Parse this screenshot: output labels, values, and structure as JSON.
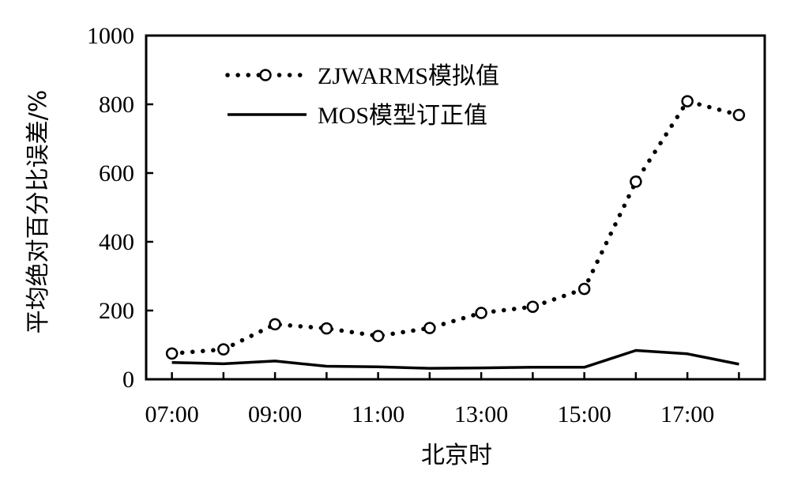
{
  "chart_data": {
    "type": "line",
    "xlabel": "北京时",
    "ylabel": "平均绝对百分比误差/%",
    "ylim": [
      0,
      1000
    ],
    "yticks": [
      "0",
      "200",
      "400",
      "600",
      "800",
      "1000"
    ],
    "xlim": [
      6.5,
      18.5
    ],
    "xticks": [
      {
        "value": 7,
        "label": "07:00"
      },
      {
        "value": 9,
        "label": "09:00"
      },
      {
        "value": 11,
        "label": "11:00"
      },
      {
        "value": 13,
        "label": "13:00"
      },
      {
        "value": 15,
        "label": "15:00"
      },
      {
        "value": 17,
        "label": "17:00"
      }
    ],
    "x": [
      7,
      8,
      9,
      10,
      11,
      12,
      13,
      14,
      15,
      16,
      17,
      18
    ],
    "series": [
      {
        "name": "ZJWARMS模拟值",
        "style": "dotted-circle",
        "values": [
          75,
          87,
          160,
          148,
          126,
          149,
          193,
          211,
          263,
          575,
          809,
          769
        ]
      },
      {
        "name": "MOS模型订正值",
        "style": "solid",
        "values": [
          49,
          45,
          53,
          38,
          36,
          32,
          33,
          35,
          35,
          84,
          74,
          44
        ]
      }
    ],
    "legend_position": "top-left",
    "grid": false,
    "colors": {
      "line": "#000000",
      "marker_fill": "#ffffff",
      "background": "#ffffff"
    }
  }
}
